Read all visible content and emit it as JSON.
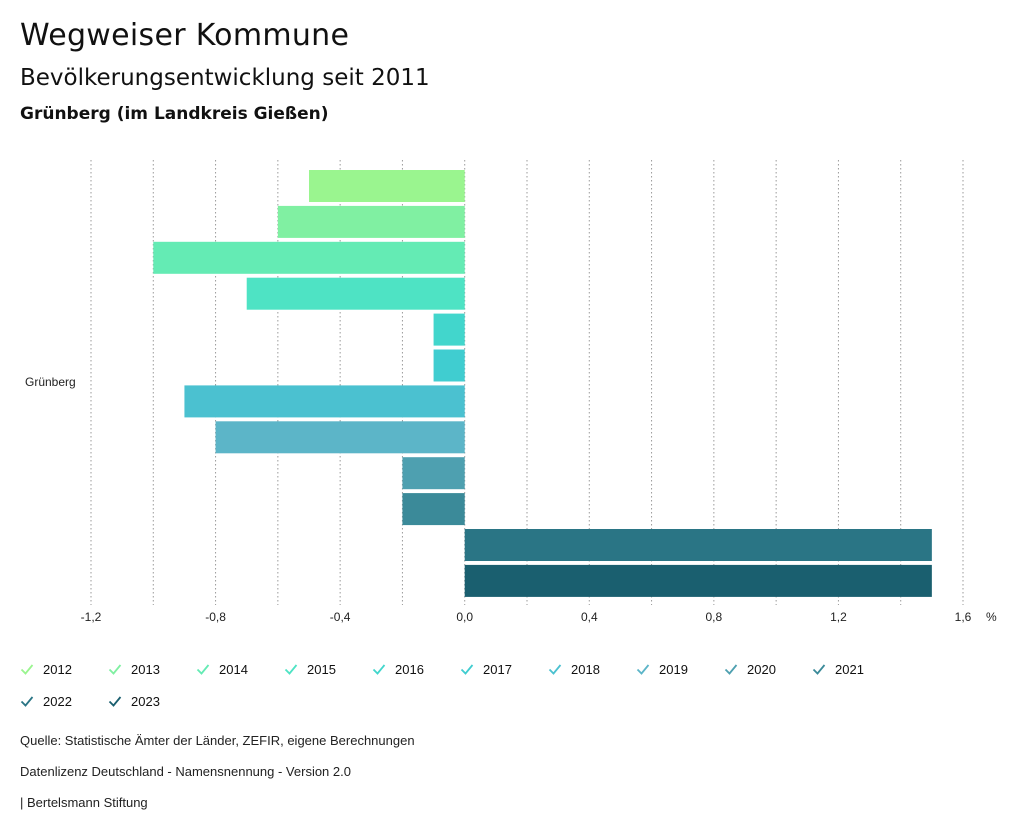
{
  "header": {
    "title": "Wegweiser Kommune",
    "subtitle": "Bevölkerungsentwicklung seit 2011",
    "region": "Grünberg (im Landkreis Gießen)"
  },
  "chart_data": {
    "type": "bar",
    "orientation": "horizontal",
    "category_label": "Grünberg",
    "unit": "%",
    "xlim": [
      -1.2,
      1.6
    ],
    "ticks": [
      "-1,2",
      "-0,8",
      "-0,4",
      "0,0",
      "0,4",
      "0,8",
      "1,2",
      "1,6"
    ],
    "tick_values": [
      -1.2,
      -0.8,
      -0.4,
      0.0,
      0.4,
      0.8,
      1.2,
      1.6
    ],
    "grid": "vertical dotted",
    "series": [
      {
        "name": "2012",
        "value": -0.5,
        "color": "#9af58f"
      },
      {
        "name": "2013",
        "value": -0.6,
        "color": "#80f0a2"
      },
      {
        "name": "2014",
        "value": -1.0,
        "color": "#64ebb4"
      },
      {
        "name": "2015",
        "value": -0.7,
        "color": "#4ee3c4"
      },
      {
        "name": "2016",
        "value": -0.1,
        "color": "#42d6cc"
      },
      {
        "name": "2017",
        "value": -0.1,
        "color": "#40cdd0"
      },
      {
        "name": "2018",
        "value": -0.9,
        "color": "#4bc1d0"
      },
      {
        "name": "2019",
        "value": -0.8,
        "color": "#5cb5c8"
      },
      {
        "name": "2020",
        "value": -0.2,
        "color": "#4ea0b0"
      },
      {
        "name": "2021",
        "value": -0.2,
        "color": "#3b8a99"
      },
      {
        "name": "2022",
        "value": 1.5,
        "color": "#2a7585"
      },
      {
        "name": "2023",
        "value": 1.5,
        "color": "#1a5f6f"
      }
    ]
  },
  "footer": {
    "source": "Quelle: Statistische Ämter der Länder, ZEFIR, eigene Berechnungen",
    "license": "Datenlizenz Deutschland - Namensnennung - Version 2.0",
    "publisher": "| Bertelsmann Stiftung"
  }
}
